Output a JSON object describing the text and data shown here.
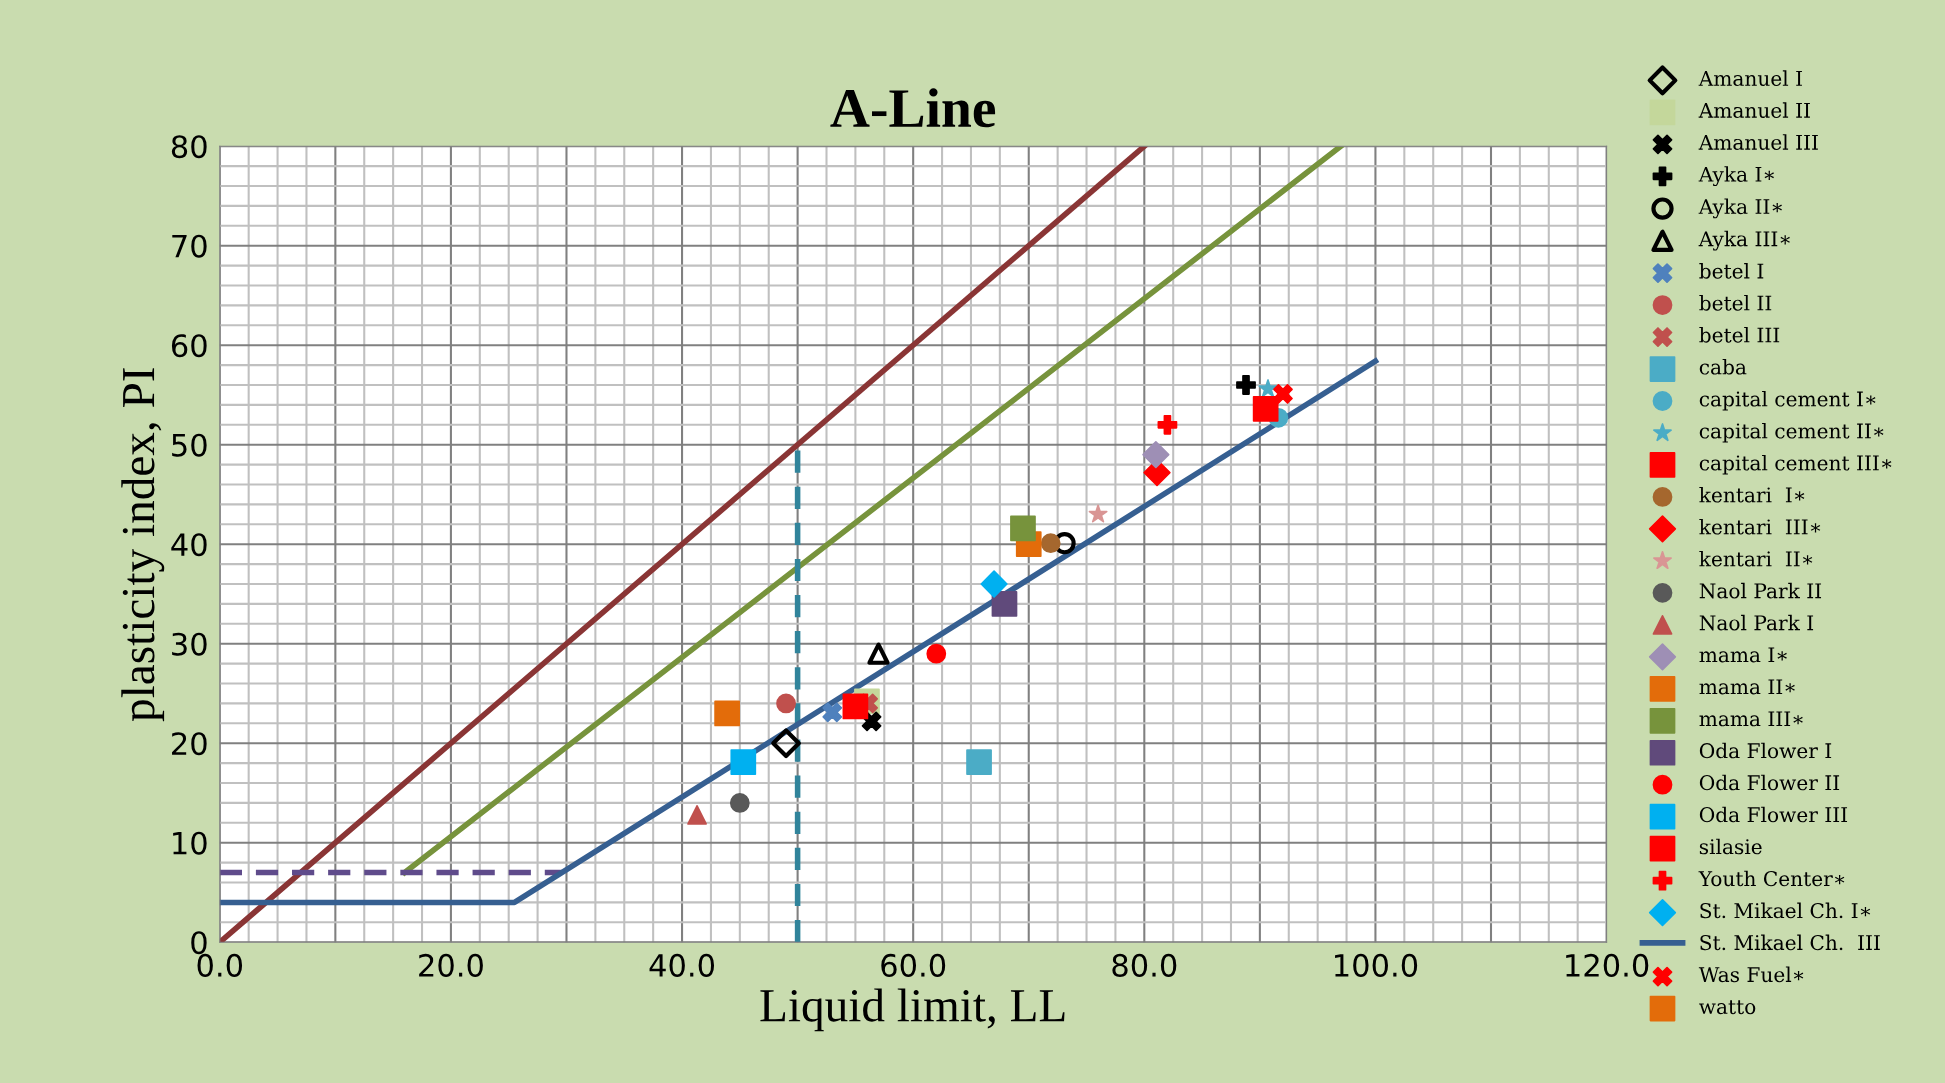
{
  "chart_data": {
    "type": "scatter",
    "title": "A-Line",
    "xlabel": "Liquid limit, LL",
    "ylabel": "plasticity index, PI",
    "xlim": [
      0,
      120
    ],
    "ylim": [
      0,
      80
    ],
    "xticks": [
      {
        "value": 0,
        "label": "0.0"
      },
      {
        "value": 20,
        "label": "20.0"
      },
      {
        "value": 40,
        "label": "40.0"
      },
      {
        "value": 60,
        "label": "60.0"
      },
      {
        "value": 80,
        "label": "80.0"
      },
      {
        "value": 100,
        "label": "100.0"
      },
      {
        "value": 120,
        "label": "120.0"
      }
    ],
    "yticks": [
      0,
      10,
      20,
      30,
      40,
      50,
      60,
      70,
      80
    ],
    "grid": true,
    "legend": "right",
    "series": [
      {
        "type": "line",
        "color": "#8a3535",
        "x": [
          0,
          80
        ],
        "values": [
          0,
          80
        ]
      },
      {
        "type": "line",
        "color": "#77933c",
        "x": [
          16,
          97
        ],
        "values": [
          7,
          80
        ]
      },
      {
        "type": "line",
        "color": "#5f4b8b",
        "line_style": "dashed",
        "x": [
          0,
          29.6
        ],
        "values": [
          7,
          7
        ]
      },
      {
        "type": "line",
        "color": "#31849b",
        "line_style": "dashed",
        "x": [
          50,
          50
        ],
        "values": [
          0,
          50
        ]
      },
      {
        "name": "Amanuel I",
        "color": "#000000",
        "marker": "diamond",
        "x": [
          49
        ],
        "values": [
          20
        ]
      },
      {
        "name": "Amanuel II",
        "color": "#c4d79b",
        "marker": "square",
        "x": [
          56
        ],
        "values": [
          24.2
        ]
      },
      {
        "name": "Amanuel III",
        "color": "#000000",
        "marker": "cross",
        "x": [
          56.4
        ],
        "values": [
          22.2
        ]
      },
      {
        "name": "Ayka I∗",
        "color": "#000000",
        "marker": "plus",
        "x": [
          88.8
        ],
        "values": [
          56
        ]
      },
      {
        "name": "Ayka II∗",
        "color": "#000000",
        "marker": "circle",
        "x": [
          73.1
        ],
        "values": [
          40.1
        ]
      },
      {
        "name": "Ayka III∗",
        "color": "#000000",
        "marker": "triangle",
        "x": [
          57
        ],
        "values": [
          29
        ]
      },
      {
        "name": "betel I",
        "color": "#4f81bd",
        "marker": "cross",
        "x": [
          53
        ],
        "values": [
          23.1
        ]
      },
      {
        "name": "betel II",
        "color": "#c0504d",
        "marker": "circle",
        "x": [
          49
        ],
        "values": [
          24
        ]
      },
      {
        "name": "betel III",
        "color": "#c0504d",
        "marker": "cross",
        "x": [
          56.1
        ],
        "values": [
          24
        ]
      },
      {
        "name": "caba",
        "color": "#4bacc6",
        "marker": "square",
        "x": [
          65.7
        ],
        "values": [
          18.1
        ]
      },
      {
        "name": "capital cement I∗",
        "color": "#4bacc6",
        "marker": "circle",
        "x": [
          91.6
        ],
        "values": [
          52.7
        ]
      },
      {
        "name": "capital cement II∗",
        "color": "#4bacc6",
        "marker": "star",
        "x": [
          90.7
        ],
        "values": [
          55.6
        ]
      },
      {
        "name": "capital cement III∗",
        "color": "#ff0000",
        "marker": "square",
        "x": [
          90.5
        ],
        "values": [
          53.6
        ]
      },
      {
        "name": "kentari  I∗",
        "color": "#a5672e",
        "marker": "circle",
        "x": [
          71.9
        ],
        "values": [
          40.1
        ]
      },
      {
        "name": "kentari  III∗",
        "color": "#ff0000",
        "marker": "diamond",
        "x": [
          81.1
        ],
        "values": [
          47.2
        ]
      },
      {
        "name": "kentari  II∗",
        "color": "#d99594",
        "marker": "star",
        "x": [
          76
        ],
        "values": [
          43
        ]
      },
      {
        "name": "Naol Park II",
        "color": "#595959",
        "marker": "circle",
        "x": [
          45
        ],
        "values": [
          14
        ]
      },
      {
        "name": "Naol Park I",
        "color": "#c0504d",
        "marker": "triangle",
        "x": [
          41.3
        ],
        "values": [
          12.8
        ]
      },
      {
        "name": "mama I∗",
        "color": "#9e8fb5",
        "marker": "diamond",
        "x": [
          81
        ],
        "values": [
          49
        ]
      },
      {
        "name": "mama II∗",
        "color": "#e36c0a",
        "marker": "square",
        "x": [
          70
        ],
        "values": [
          40
        ]
      },
      {
        "name": "mama III∗",
        "color": "#77933c",
        "marker": "square",
        "x": [
          69.5
        ],
        "values": [
          41.6
        ]
      },
      {
        "name": "Oda Flower I",
        "color": "#604a7b",
        "marker": "square",
        "x": [
          67.9
        ],
        "values": [
          34
        ]
      },
      {
        "name": "Oda Flower II",
        "color": "#ff0000",
        "marker": "circle",
        "x": [
          62
        ],
        "values": [
          29
        ]
      },
      {
        "name": "Oda Flower III",
        "color": "#00b0f0",
        "marker": "square",
        "x": [
          45.3
        ],
        "values": [
          18.1
        ]
      },
      {
        "name": "silasie",
        "color": "#ff0000",
        "marker": "square",
        "x": [
          55
        ],
        "values": [
          23.7
        ]
      },
      {
        "name": "Youth Center∗",
        "color": "#ff0000",
        "marker": "plus",
        "x": [
          82
        ],
        "values": [
          52
        ]
      },
      {
        "name": "St. Mikael Ch. I∗",
        "color": "#00b0f0",
        "marker": "diamond",
        "x": [
          67
        ],
        "values": [
          36
        ]
      },
      {
        "name": "St. Mikael Ch.  III",
        "type": "line",
        "color": "#365f91",
        "x": [
          0,
          25.5,
          100
        ],
        "values": [
          4,
          4,
          58.4
        ]
      },
      {
        "name": "Was Fuel∗",
        "color": "#ff0000",
        "marker": "cross",
        "x": [
          92
        ],
        "values": [
          55.1
        ]
      },
      {
        "name": "watto",
        "color": "#e36c0a",
        "marker": "square",
        "x": [
          43.9
        ],
        "values": [
          23
        ]
      }
    ]
  }
}
